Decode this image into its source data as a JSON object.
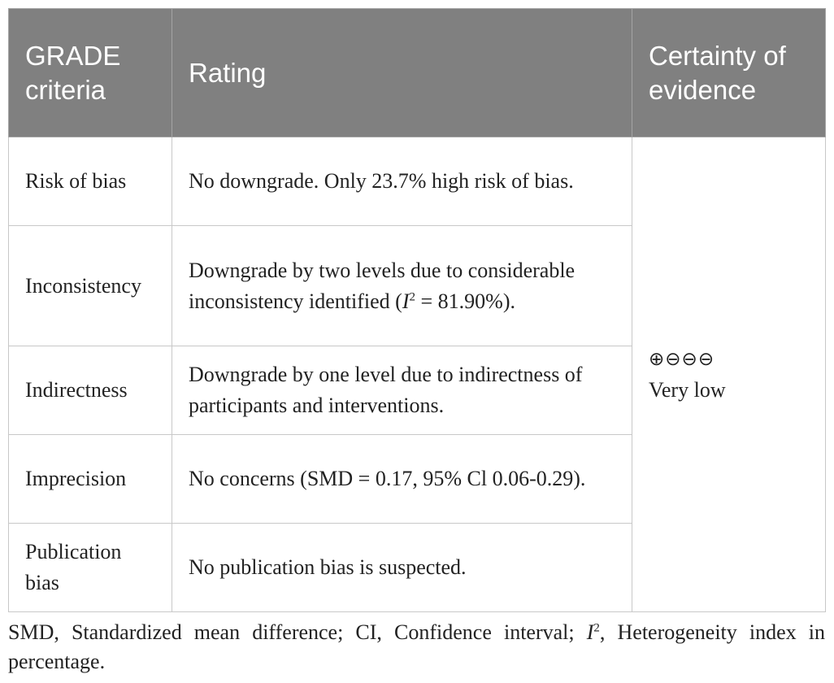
{
  "table": {
    "headers": [
      "GRADE criteria",
      "Rating",
      "Certainty of evidence"
    ],
    "rows": [
      {
        "criterion": "Risk of bias",
        "rating": "No downgrade. Only 23.7% high risk of bias."
      },
      {
        "criterion": "Inconsistency",
        "rating_before": "Downgrade by two levels due to considerable inconsistency identified (",
        "rating_symbol": "I",
        "rating_sup": "2",
        "rating_after": " = 81.90%)."
      },
      {
        "criterion": "Indirectness",
        "rating": "Downgrade by one level due to indirectness of participants and interventions."
      },
      {
        "criterion": "Imprecision",
        "rating": "No concerns (SMD = 0.17, 95% Cl 0.06-0.29)."
      },
      {
        "criterion": "Publication bias",
        "rating": "No publication bias is suspected."
      }
    ],
    "certainty": {
      "symbols": "⊕⊖⊖⊖",
      "label": "Very low"
    }
  },
  "footnote": {
    "part1": "SMD, Standardized mean difference; CI, Confidence interval; ",
    "symbol": "I",
    "sup": "2",
    "part2": ", Heterogeneity index in percentage."
  }
}
